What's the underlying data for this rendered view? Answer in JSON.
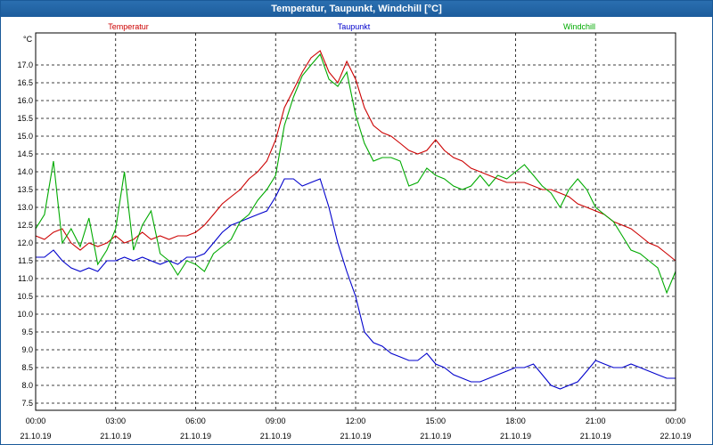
{
  "window": {
    "title": "Temperatur, Taupunkt, Windchill [°C]"
  },
  "chart_data": {
    "type": "line",
    "title": "Temperatur, Taupunkt, Windchill [°C]",
    "ylabel": "°C",
    "xlabel": "",
    "ylim": [
      7.3,
      17.9
    ],
    "xlim": [
      0,
      24
    ],
    "grid": true,
    "legend_placement": "top",
    "yticks": [
      7.5,
      8.0,
      8.5,
      9.0,
      9.5,
      10.0,
      10.5,
      11.0,
      11.5,
      12.0,
      12.5,
      13.0,
      13.5,
      14.0,
      14.5,
      15.0,
      15.5,
      16.0,
      16.5,
      17.0
    ],
    "xticks": [
      {
        "x": 0,
        "time": "00:00",
        "date": "21.10.19"
      },
      {
        "x": 3,
        "time": "03:00",
        "date": "21.10.19"
      },
      {
        "x": 6,
        "time": "06:00",
        "date": "21.10.19"
      },
      {
        "x": 9,
        "time": "09:00",
        "date": "21.10.19"
      },
      {
        "x": 12,
        "time": "12:00",
        "date": "21.10.19"
      },
      {
        "x": 15,
        "time": "15:00",
        "date": "21.10.19"
      },
      {
        "x": 18,
        "time": "18:00",
        "date": "21.10.19"
      },
      {
        "x": 21,
        "time": "21:00",
        "date": "21.10.19"
      },
      {
        "x": 24,
        "time": "00:00",
        "date": "22.10.19"
      }
    ],
    "series": [
      {
        "name": "Temperatur",
        "color": "#cc0000",
        "x": [
          0,
          0.33,
          0.67,
          1.0,
          1.33,
          1.67,
          2.0,
          2.33,
          2.67,
          3.0,
          3.33,
          3.67,
          4.0,
          4.33,
          4.67,
          5.0,
          5.33,
          5.67,
          6.0,
          6.33,
          6.67,
          7.0,
          7.33,
          7.67,
          8.0,
          8.33,
          8.67,
          9.0,
          9.33,
          9.67,
          10.0,
          10.33,
          10.67,
          11.0,
          11.33,
          11.67,
          12.0,
          12.33,
          12.67,
          13.0,
          13.33,
          13.67,
          14.0,
          14.33,
          14.67,
          15.0,
          15.33,
          15.67,
          16.0,
          16.33,
          16.67,
          17.0,
          17.33,
          17.67,
          18.0,
          18.33,
          18.67,
          19.0,
          19.33,
          19.67,
          20.0,
          20.33,
          20.67,
          21.0,
          21.33,
          21.67,
          22.0,
          22.33,
          22.67,
          23.0,
          23.33,
          23.67,
          24.0
        ],
        "values": [
          12.2,
          12.1,
          12.3,
          12.4,
          12.0,
          11.8,
          12.0,
          11.9,
          12.0,
          12.2,
          12.0,
          12.1,
          12.3,
          12.1,
          12.2,
          12.1,
          12.2,
          12.2,
          12.3,
          12.5,
          12.8,
          13.1,
          13.3,
          13.5,
          13.8,
          14.0,
          14.3,
          14.9,
          15.8,
          16.3,
          16.8,
          17.2,
          17.4,
          16.8,
          16.5,
          17.1,
          16.6,
          15.8,
          15.3,
          15.1,
          15.0,
          14.8,
          14.6,
          14.5,
          14.6,
          14.9,
          14.6,
          14.4,
          14.3,
          14.1,
          14.0,
          13.9,
          13.8,
          13.7,
          13.7,
          13.7,
          13.6,
          13.5,
          13.5,
          13.4,
          13.3,
          13.1,
          13.0,
          12.9,
          12.8,
          12.6,
          12.5,
          12.4,
          12.2,
          12.0,
          11.9,
          11.7,
          11.5
        ]
      },
      {
        "name": "Taupunkt",
        "color": "#0000cc",
        "x": [
          0,
          0.33,
          0.67,
          1.0,
          1.33,
          1.67,
          2.0,
          2.33,
          2.67,
          3.0,
          3.33,
          3.67,
          4.0,
          4.33,
          4.67,
          5.0,
          5.33,
          5.67,
          6.0,
          6.33,
          6.67,
          7.0,
          7.33,
          7.67,
          8.0,
          8.33,
          8.67,
          9.0,
          9.33,
          9.67,
          10.0,
          10.33,
          10.67,
          11.0,
          11.33,
          11.67,
          12.0,
          12.33,
          12.67,
          13.0,
          13.33,
          13.67,
          14.0,
          14.33,
          14.67,
          15.0,
          15.33,
          15.67,
          16.0,
          16.33,
          16.67,
          17.0,
          17.33,
          17.67,
          18.0,
          18.33,
          18.67,
          19.0,
          19.33,
          19.67,
          20.0,
          20.33,
          20.67,
          21.0,
          21.33,
          21.67,
          22.0,
          22.33,
          22.67,
          23.0,
          23.33,
          23.67,
          24.0
        ],
        "values": [
          11.6,
          11.6,
          11.8,
          11.5,
          11.3,
          11.2,
          11.3,
          11.2,
          11.5,
          11.5,
          11.6,
          11.5,
          11.6,
          11.5,
          11.4,
          11.5,
          11.4,
          11.6,
          11.6,
          11.7,
          12.0,
          12.3,
          12.5,
          12.6,
          12.7,
          12.8,
          12.9,
          13.3,
          13.8,
          13.8,
          13.6,
          13.7,
          13.8,
          13.0,
          12.0,
          11.2,
          10.5,
          9.5,
          9.2,
          9.1,
          8.9,
          8.8,
          8.7,
          8.7,
          8.9,
          8.6,
          8.5,
          8.3,
          8.2,
          8.1,
          8.1,
          8.2,
          8.3,
          8.4,
          8.5,
          8.5,
          8.6,
          8.3,
          8.0,
          7.9,
          8.0,
          8.1,
          8.4,
          8.7,
          8.6,
          8.5,
          8.5,
          8.6,
          8.5,
          8.4,
          8.3,
          8.2,
          8.2
        ]
      },
      {
        "name": "Windchill",
        "color": "#00aa00",
        "x": [
          0,
          0.33,
          0.67,
          1.0,
          1.33,
          1.67,
          2.0,
          2.33,
          2.67,
          3.0,
          3.33,
          3.67,
          4.0,
          4.33,
          4.67,
          5.0,
          5.33,
          5.67,
          6.0,
          6.33,
          6.67,
          7.0,
          7.33,
          7.67,
          8.0,
          8.33,
          8.67,
          9.0,
          9.33,
          9.67,
          10.0,
          10.33,
          10.67,
          11.0,
          11.33,
          11.67,
          12.0,
          12.33,
          12.67,
          13.0,
          13.33,
          13.67,
          14.0,
          14.33,
          14.67,
          15.0,
          15.33,
          15.67,
          16.0,
          16.33,
          16.67,
          17.0,
          17.33,
          17.67,
          18.0,
          18.33,
          18.67,
          19.0,
          19.33,
          19.67,
          20.0,
          20.33,
          20.67,
          21.0,
          21.33,
          21.67,
          22.0,
          22.33,
          22.67,
          23.0,
          23.33,
          23.67,
          24.0
        ],
        "values": [
          12.4,
          12.8,
          14.3,
          12.0,
          12.4,
          11.9,
          12.7,
          11.4,
          11.8,
          12.4,
          14.0,
          11.8,
          12.5,
          12.9,
          11.7,
          11.5,
          11.1,
          11.5,
          11.4,
          11.2,
          11.7,
          11.9,
          12.1,
          12.6,
          12.8,
          13.2,
          13.5,
          13.9,
          15.3,
          16.1,
          16.7,
          17.0,
          17.3,
          16.6,
          16.4,
          16.8,
          15.6,
          14.8,
          14.3,
          14.4,
          14.4,
          14.3,
          13.6,
          13.7,
          14.1,
          13.9,
          13.8,
          13.6,
          13.5,
          13.6,
          13.9,
          13.6,
          13.9,
          13.8,
          14.0,
          14.2,
          13.9,
          13.6,
          13.4,
          13.0,
          13.5,
          13.8,
          13.5,
          13.0,
          12.8,
          12.6,
          12.2,
          11.8,
          11.7,
          11.5,
          11.3,
          10.6,
          11.2
        ]
      }
    ]
  }
}
